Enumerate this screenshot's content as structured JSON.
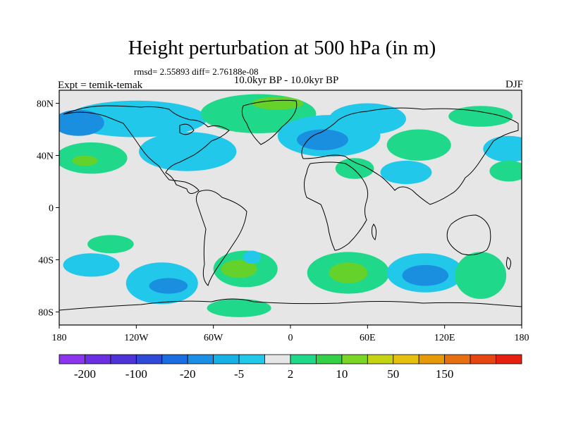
{
  "title": "Height perturbation at 500 hPa (in m)",
  "stats": "rmsd= 2.55893  diff= 2.76188e-08",
  "subtitle": "10.0kyr BP - 10.0kyr BP",
  "left_label": "Expt = temik-temak",
  "right_label": "DJF",
  "lat_ticks": [
    "80N",
    "40N",
    "0",
    "40S",
    "80S"
  ],
  "lon_ticks": [
    "180",
    "120W",
    "60W",
    "0",
    "60E",
    "120E",
    "180"
  ],
  "colorbar": {
    "colors": [
      "#8c35ee",
      "#6a2fe0",
      "#4e33d9",
      "#2e4ad6",
      "#1a6ee0",
      "#1b8fe6",
      "#16b2e6",
      "#22c8ea",
      "#e6e6e6",
      "#20d88a",
      "#34d046",
      "#7ad626",
      "#c5d412",
      "#e6c00e",
      "#e69a0a",
      "#e67010",
      "#e64612",
      "#e62010"
    ],
    "labels": [
      "-200",
      "-100",
      "-20",
      "-5",
      "2",
      "10",
      "50",
      "150"
    ]
  },
  "chart_data": {
    "type": "heatmap",
    "projection": "cylindrical-equidistant",
    "x_range": [
      -180,
      180
    ],
    "y_range": [
      -90,
      90
    ],
    "features": [
      {
        "lon": -120,
        "lat": 68,
        "rx": 55,
        "ry": 14,
        "level": "-5"
      },
      {
        "lon": -165,
        "lat": 65,
        "rx": 20,
        "ry": 10,
        "level": "-20"
      },
      {
        "lon": -155,
        "lat": 38,
        "rx": 28,
        "ry": 12,
        "level": "5"
      },
      {
        "lon": -160,
        "lat": 36,
        "rx": 10,
        "ry": 4,
        "level": "10"
      },
      {
        "lon": -80,
        "lat": 43,
        "rx": 38,
        "ry": 15,
        "level": "-5"
      },
      {
        "lon": -25,
        "lat": 72,
        "rx": 45,
        "ry": 15,
        "level": "5"
      },
      {
        "lon": -10,
        "lat": 80,
        "rx": 20,
        "ry": 5,
        "level": "10"
      },
      {
        "lon": 30,
        "lat": 55,
        "rx": 40,
        "ry": 16,
        "level": "-5"
      },
      {
        "lon": 60,
        "lat": 68,
        "rx": 30,
        "ry": 12,
        "level": "-5"
      },
      {
        "lon": 25,
        "lat": 52,
        "rx": 20,
        "ry": 8,
        "level": "-20"
      },
      {
        "lon": 100,
        "lat": 48,
        "rx": 25,
        "ry": 12,
        "level": "5"
      },
      {
        "lon": 148,
        "lat": 70,
        "rx": 25,
        "ry": 8,
        "level": "5"
      },
      {
        "lon": 170,
        "lat": 45,
        "rx": 20,
        "ry": 10,
        "level": "-5"
      },
      {
        "lon": 170,
        "lat": 28,
        "rx": 15,
        "ry": 8,
        "level": "5"
      },
      {
        "lon": 90,
        "lat": 27,
        "rx": 20,
        "ry": 9,
        "level": "-5"
      },
      {
        "lon": 50,
        "lat": 30,
        "rx": 15,
        "ry": 8,
        "level": "5"
      },
      {
        "lon": -140,
        "lat": -28,
        "rx": 18,
        "ry": 7,
        "level": "5"
      },
      {
        "lon": -155,
        "lat": -44,
        "rx": 22,
        "ry": 9,
        "level": "-5"
      },
      {
        "lon": -100,
        "lat": -58,
        "rx": 28,
        "ry": 16,
        "level": "-5"
      },
      {
        "lon": -95,
        "lat": -60,
        "rx": 15,
        "ry": 6,
        "level": "-20"
      },
      {
        "lon": -35,
        "lat": -47,
        "rx": 25,
        "ry": 14,
        "level": "5"
      },
      {
        "lon": -40,
        "lat": -47,
        "rx": 14,
        "ry": 7,
        "level": "10"
      },
      {
        "lon": -30,
        "lat": -38,
        "rx": 7,
        "ry": 5,
        "level": "-5"
      },
      {
        "lon": -40,
        "lat": -77,
        "rx": 25,
        "ry": 7,
        "level": "5"
      },
      {
        "lon": 45,
        "lat": -50,
        "rx": 32,
        "ry": 16,
        "level": "5"
      },
      {
        "lon": 45,
        "lat": -50,
        "rx": 15,
        "ry": 8,
        "level": "10"
      },
      {
        "lon": 105,
        "lat": -50,
        "rx": 30,
        "ry": 15,
        "level": "-5"
      },
      {
        "lon": 105,
        "lat": -52,
        "rx": 18,
        "ry": 8,
        "level": "-20"
      },
      {
        "lon": 148,
        "lat": -52,
        "rx": 20,
        "ry": 18,
        "level": "5"
      }
    ]
  }
}
